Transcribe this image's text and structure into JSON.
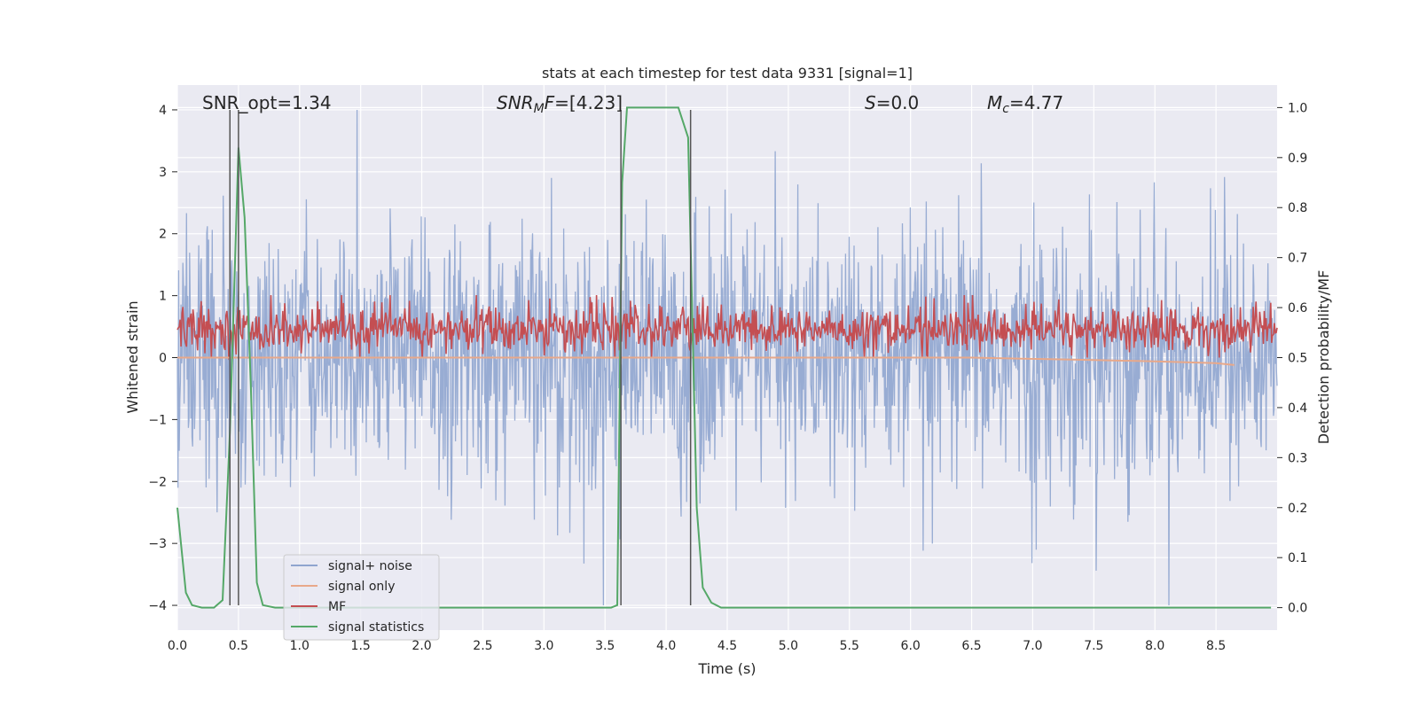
{
  "chart_data": {
    "type": "line",
    "title": "stats at each timestep for test data 9331 [signal=1]",
    "xlabel": "Time (s)",
    "ylabel": "Whitened strain",
    "y2label": "Detection probability/MF",
    "xlim": [
      0.0,
      9.0
    ],
    "ylim": [
      -4.4,
      4.4
    ],
    "y2lim": [
      -0.045,
      1.045
    ],
    "x_ticks": [
      "0.0",
      "0.5",
      "1.0",
      "1.5",
      "2.0",
      "2.5",
      "3.0",
      "3.5",
      "4.0",
      "4.5",
      "5.0",
      "5.5",
      "6.0",
      "6.5",
      "7.0",
      "7.5",
      "8.0",
      "8.5"
    ],
    "y_ticks": [
      "−4",
      "−3",
      "−2",
      "−1",
      "0",
      "1",
      "2",
      "3",
      "4"
    ],
    "y2_ticks": [
      "0.0",
      "0.1",
      "0.2",
      "0.3",
      "0.4",
      "0.5",
      "0.6",
      "0.7",
      "0.8",
      "0.9",
      "1.0"
    ],
    "grid": true,
    "legend_position": "lower-left",
    "annotations": {
      "snr_opt": "SNR_opt=1.34",
      "snr_mf": "=[4.23]",
      "snr_mf_symbol": "SNR",
      "snr_mf_sub": "M",
      "snr_mf_tail": "F",
      "s_symbol": "S",
      "s_value": "=0.0",
      "mc_symbol": "M",
      "mc_sub": "c",
      "mc_value": "=4.77"
    },
    "vertical_lines_x": [
      0.43,
      0.5,
      3.63,
      4.2
    ],
    "series": [
      {
        "name": "signal+ noise",
        "color": "#8fa5cf",
        "description": "whitened strain noise band, amplitude approx ±1.6 core with spikes up to ±4"
      },
      {
        "name": "signal only",
        "color": "#e8a88a",
        "x": [
          0.0,
          6.5,
          7.0,
          7.5,
          8.0,
          8.5,
          8.65
        ],
        "y": [
          0.0,
          0.0,
          -0.02,
          -0.04,
          -0.06,
          -0.09,
          -0.12
        ]
      },
      {
        "name": "MF",
        "color": "#c44e52",
        "description": "matched filter output fluctuating between about 0.5 and 0.62 on the right axis"
      },
      {
        "name": "signal statistics",
        "color": "#55a868",
        "x": [
          0.0,
          0.07,
          0.12,
          0.2,
          0.3,
          0.37,
          0.43,
          0.5,
          0.55,
          0.6,
          0.65,
          0.7,
          0.8,
          3.55,
          3.6,
          3.64,
          3.68,
          4.1,
          4.18,
          4.25,
          4.3,
          4.37,
          4.45,
          8.95
        ],
        "y": [
          0.2,
          0.03,
          0.005,
          0.0,
          0.0,
          0.015,
          0.35,
          0.92,
          0.78,
          0.45,
          0.05,
          0.005,
          0.0,
          0.0,
          0.005,
          0.85,
          1.0,
          1.0,
          0.94,
          0.2,
          0.04,
          0.01,
          0.0,
          0.0
        ]
      }
    ]
  }
}
